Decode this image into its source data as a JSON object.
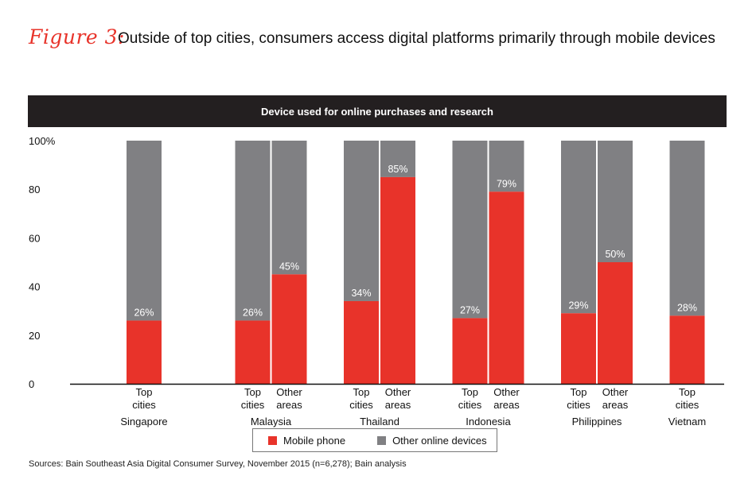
{
  "figure_label": "Figure 3:",
  "title": "Outside of top cities, consumers access digital platforms primarily through mobile devices",
  "source": "Sources: Bain Southeast Asia Digital Consumer Survey, November 2015 (n=6,278); Bain analysis",
  "colors": {
    "mobile": "#e8332a",
    "other": "#808083",
    "banner": "#231f20",
    "figure_label": "#e8332a"
  },
  "chart_data": {
    "type": "bar",
    "stacked": true,
    "title": "Device used for online purchases and research",
    "ylim": [
      0,
      100
    ],
    "yticks": [
      {
        "value": 0,
        "label": "0"
      },
      {
        "value": 20,
        "label": "20"
      },
      {
        "value": 40,
        "label": "40"
      },
      {
        "value": 60,
        "label": "60"
      },
      {
        "value": 80,
        "label": "80"
      },
      {
        "value": 100,
        "label": "100%"
      }
    ],
    "legend": [
      {
        "name": "Mobile phone",
        "color": "#e8332a"
      },
      {
        "name": "Other online devices",
        "color": "#808083"
      }
    ],
    "groups": [
      {
        "country": "Singapore",
        "bars": [
          {
            "label": [
              "Top",
              "cities"
            ],
            "mobile": 26,
            "value_label": "26%"
          }
        ]
      },
      {
        "country": "Malaysia",
        "bars": [
          {
            "label": [
              "Top",
              "cities"
            ],
            "mobile": 26,
            "value_label": "26%"
          },
          {
            "label": [
              "Other",
              "areas"
            ],
            "mobile": 45,
            "value_label": "45%"
          }
        ]
      },
      {
        "country": "Thailand",
        "bars": [
          {
            "label": [
              "Top",
              "cities"
            ],
            "mobile": 34,
            "value_label": "34%"
          },
          {
            "label": [
              "Other",
              "areas"
            ],
            "mobile": 85,
            "value_label": "85%"
          }
        ]
      },
      {
        "country": "Indonesia",
        "bars": [
          {
            "label": [
              "Top",
              "cities"
            ],
            "mobile": 27,
            "value_label": "27%"
          },
          {
            "label": [
              "Other",
              "areas"
            ],
            "mobile": 79,
            "value_label": "79%"
          }
        ]
      },
      {
        "country": "Philippines",
        "bars": [
          {
            "label": [
              "Top",
              "cities"
            ],
            "mobile": 29,
            "value_label": "29%"
          },
          {
            "label": [
              "Other",
              "areas"
            ],
            "mobile": 50,
            "value_label": "50%"
          }
        ]
      },
      {
        "country": "Vietnam",
        "bars": [
          {
            "label": [
              "Top",
              "cities"
            ],
            "mobile": 28,
            "value_label": "28%"
          }
        ]
      }
    ]
  }
}
